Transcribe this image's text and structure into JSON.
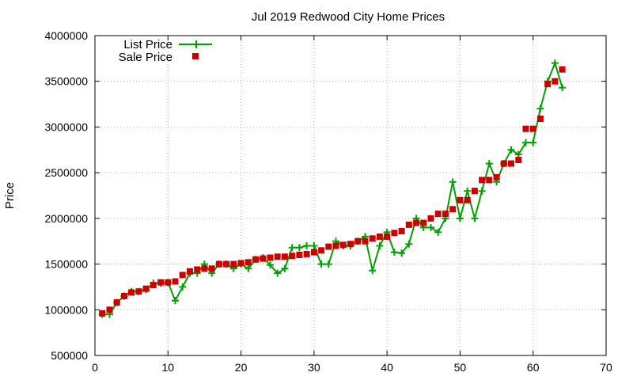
{
  "chart_data": {
    "type": "line",
    "title": "Jul 2019 Redwood City Home Prices",
    "xlabel": "",
    "ylabel": "Price",
    "xlim": [
      0,
      70
    ],
    "ylim": [
      500000,
      4000000
    ],
    "x_ticks": [
      "0",
      "10",
      "20",
      "30",
      "40",
      "50",
      "60",
      "70"
    ],
    "y_ticks": [
      "500000",
      "1000000",
      "1500000",
      "2000000",
      "2500000",
      "3000000",
      "3500000",
      "4000000"
    ],
    "grid": true,
    "legend_position": "top-left",
    "series": [
      {
        "name": "List Price",
        "style": "line-plus",
        "color": "#00a000",
        "x": [
          1,
          2,
          3,
          4,
          5,
          6,
          7,
          8,
          9,
          10,
          11,
          12,
          13,
          14,
          15,
          16,
          17,
          18,
          19,
          20,
          21,
          22,
          23,
          24,
          25,
          26,
          27,
          28,
          29,
          30,
          31,
          32,
          33,
          34,
          35,
          36,
          37,
          38,
          39,
          40,
          41,
          42,
          43,
          44,
          45,
          46,
          47,
          48,
          49,
          50,
          51,
          52,
          53,
          54,
          55,
          56,
          57,
          58,
          59,
          60,
          61,
          62,
          63,
          64
        ],
        "values": [
          950000,
          950000,
          1080000,
          1150000,
          1200000,
          1200000,
          1220000,
          1290000,
          1290000,
          1300000,
          1100000,
          1250000,
          1400000,
          1400000,
          1500000,
          1400000,
          1500000,
          1500000,
          1450000,
          1500000,
          1450000,
          1550000,
          1570000,
          1490000,
          1400000,
          1450000,
          1680000,
          1680000,
          1700000,
          1700000,
          1500000,
          1500000,
          1750000,
          1700000,
          1700000,
          1750000,
          1800000,
          1430000,
          1700000,
          1850000,
          1630000,
          1620000,
          1720000,
          2000000,
          1900000,
          1900000,
          1850000,
          2000000,
          2400000,
          2000000,
          2300000,
          2000000,
          2300000,
          2600000,
          2400000,
          2600000,
          2750000,
          2700000,
          2830000,
          2830000,
          3200000,
          3500000,
          3700000,
          3430000
        ]
      },
      {
        "name": "Sale Price",
        "style": "square",
        "color": "#cc0000",
        "x": [
          1,
          2,
          3,
          4,
          5,
          6,
          7,
          8,
          9,
          10,
          11,
          12,
          13,
          14,
          15,
          16,
          17,
          18,
          19,
          20,
          21,
          22,
          23,
          24,
          25,
          26,
          27,
          28,
          29,
          30,
          31,
          32,
          33,
          34,
          35,
          36,
          37,
          38,
          39,
          40,
          41,
          42,
          43,
          44,
          45,
          46,
          47,
          48,
          49,
          50,
          51,
          52,
          53,
          54,
          55,
          56,
          57,
          58,
          59,
          60,
          61,
          62,
          63,
          64
        ],
        "values": [
          960000,
          1000000,
          1080000,
          1150000,
          1190000,
          1200000,
          1230000,
          1270000,
          1300000,
          1300000,
          1310000,
          1380000,
          1420000,
          1440000,
          1450000,
          1450000,
          1500000,
          1500000,
          1500000,
          1510000,
          1520000,
          1550000,
          1560000,
          1570000,
          1580000,
          1580000,
          1590000,
          1600000,
          1610000,
          1630000,
          1650000,
          1690000,
          1700000,
          1710000,
          1720000,
          1750000,
          1750000,
          1780000,
          1800000,
          1800000,
          1840000,
          1860000,
          1930000,
          1950000,
          1950000,
          2000000,
          2050000,
          2050000,
          2100000,
          2200000,
          2200000,
          2300000,
          2420000,
          2420000,
          2450000,
          2600000,
          2600000,
          2640000,
          2980000,
          2980000,
          3090000,
          3470000,
          3500000,
          3630000
        ]
      }
    ]
  }
}
